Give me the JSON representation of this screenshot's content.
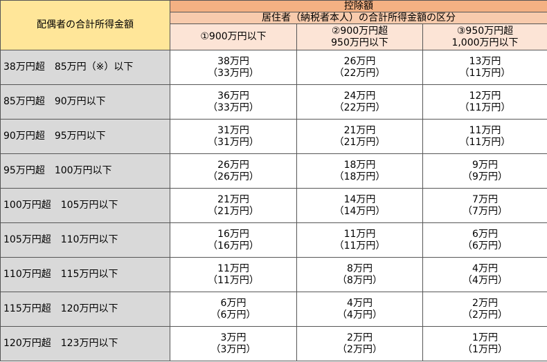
{
  "header": {
    "corner": "配偶者の合計所得金額",
    "top": "控除額",
    "sub": "居住者（納税者本人）の合計所得金額の区分",
    "columns": [
      [
        "①900万円以下"
      ],
      [
        "②900万円超",
        "950万円以下"
      ],
      [
        "③950万円超",
        "1,000万円以下"
      ]
    ]
  },
  "rows": [
    {
      "label": "38万円超　85万円（※）以下",
      "cells": [
        [
          "38万円",
          "（33万円）"
        ],
        [
          "26万円",
          "（22万円）"
        ],
        [
          "13万円",
          "（11万円）"
        ]
      ]
    },
    {
      "label": "85万円超　90万円以下",
      "cells": [
        [
          "36万円",
          "（33万円）"
        ],
        [
          "24万円",
          "（22万円）"
        ],
        [
          "12万円",
          "（11万円）"
        ]
      ]
    },
    {
      "label": "90万円超　95万円以下",
      "cells": [
        [
          "31万円",
          "（31万円）"
        ],
        [
          "21万円",
          "（21万円）"
        ],
        [
          "11万円",
          "（11万円）"
        ]
      ]
    },
    {
      "label": "95万円超　100万円以下",
      "cells": [
        [
          "26万円",
          "（26万円）"
        ],
        [
          "18万円",
          "（18万円）"
        ],
        [
          "9万円",
          "（9万円）"
        ]
      ]
    },
    {
      "label": "100万円超　105万円以下",
      "cells": [
        [
          "21万円",
          "（21万円）"
        ],
        [
          "14万円",
          "（14万円）"
        ],
        [
          "7万円",
          "（7万円）"
        ]
      ]
    },
    {
      "label": "105万円超　110万円以下",
      "cells": [
        [
          "16万円",
          "（16万円）"
        ],
        [
          "11万円",
          "（11万円）"
        ],
        [
          "6万円",
          "（6万円）"
        ]
      ]
    },
    {
      "label": "110万円超　115万円以下",
      "cells": [
        [
          "11万円",
          "（11万円）"
        ],
        [
          "8万円",
          "（8万円）"
        ],
        [
          "4万円",
          "（4万円）"
        ]
      ]
    },
    {
      "label": "115万円超　120万円以下",
      "cells": [
        [
          "6万円",
          "（6万円）"
        ],
        [
          "4万円",
          "（4万円）"
        ],
        [
          "2万円",
          "（2万円）"
        ]
      ]
    },
    {
      "label": "120万円超　123万円以下",
      "cells": [
        [
          "3万円",
          "（3万円）"
        ],
        [
          "2万円",
          "（2万円）"
        ],
        [
          "1万円",
          "（1万円）"
        ]
      ]
    }
  ]
}
